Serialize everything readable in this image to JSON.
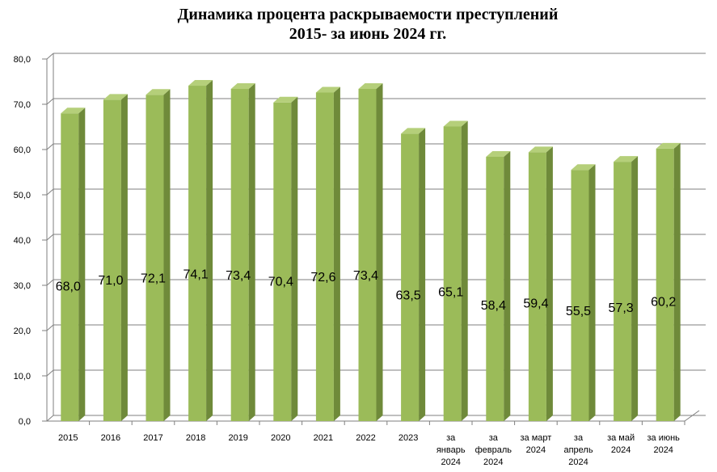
{
  "chart_data": {
    "type": "bar",
    "title": [
      "Динамика процента раскрываемости преступлений",
      "2015- за июнь 2024 гг."
    ],
    "categories": [
      [
        "2015"
      ],
      [
        "2016"
      ],
      [
        "2017"
      ],
      [
        "2018"
      ],
      [
        "2019"
      ],
      [
        "2020"
      ],
      [
        "2021"
      ],
      [
        "2022"
      ],
      [
        "2023"
      ],
      [
        "за",
        "январь",
        "2024"
      ],
      [
        "за",
        "февраль",
        "2024"
      ],
      [
        "за март",
        "2024"
      ],
      [
        "за",
        "апрель",
        "2024"
      ],
      [
        "за май",
        "2024"
      ],
      [
        "за июнь",
        "2024"
      ]
    ],
    "values": [
      68.0,
      71.0,
      72.1,
      74.1,
      73.4,
      70.4,
      72.6,
      73.4,
      63.5,
      65.1,
      58.4,
      59.4,
      55.5,
      57.3,
      60.2
    ],
    "value_labels": [
      "68,0",
      "71,0",
      "72,1",
      "74,1",
      "73,4",
      "70,4",
      "72,6",
      "73,4",
      "63,5",
      "65,1",
      "58,4",
      "59,4",
      "55,5",
      "57,3",
      "60,2"
    ],
    "y_ticks": [
      "0,0",
      "10,0",
      "20,0",
      "30,0",
      "40,0",
      "50,0",
      "60,0",
      "70,0",
      "80,0"
    ],
    "ylim": [
      0,
      80
    ],
    "grid": true,
    "legend": "none",
    "colors": {
      "bar_front": "#9bbb59",
      "bar_side": "#6f8a3a",
      "bar_top": "#b5cf7a",
      "grid": "#7f7f7f",
      "axis": "#7f7f7f"
    }
  }
}
